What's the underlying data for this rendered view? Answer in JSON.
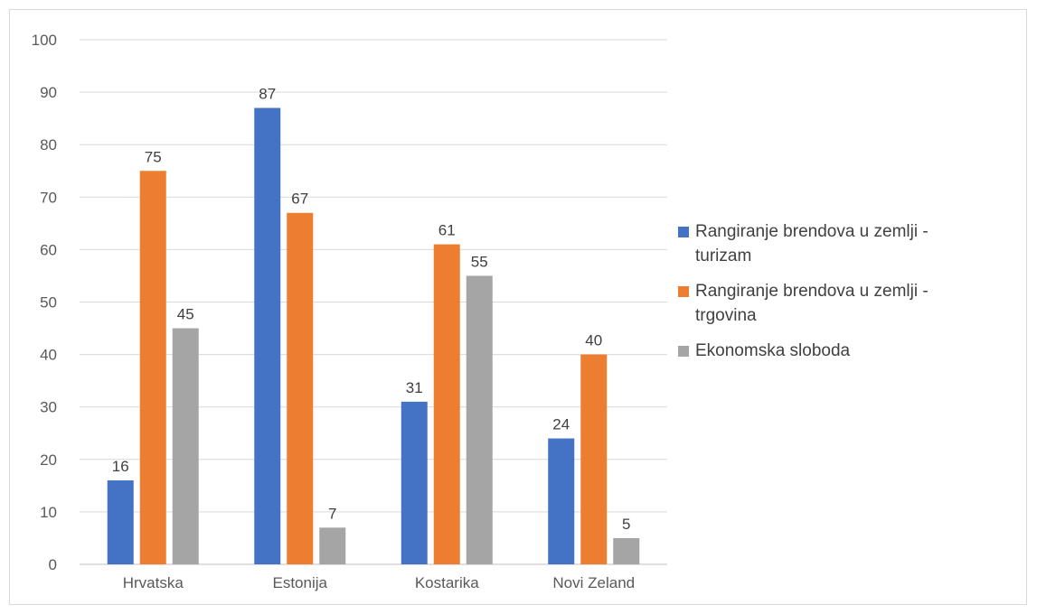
{
  "colors": {
    "series1": "#4472c4",
    "series2": "#ed7d31",
    "series3": "#a5a5a5",
    "grid": "#d9d9d9",
    "axis": "#bfbfbf"
  },
  "chart_data": {
    "type": "bar",
    "categories": [
      "Hrvatska",
      "Estonija",
      "Kostarika",
      "Novi Zeland"
    ],
    "series": [
      {
        "name": "Rangiranje brendova u zemlji - turizam",
        "values": [
          16,
          87,
          31,
          24
        ]
      },
      {
        "name": "Rangiranje brendova u zemlji - trgovina",
        "values": [
          75,
          67,
          61,
          40
        ]
      },
      {
        "name": "Ekonomska sloboda",
        "values": [
          45,
          7,
          55,
          5
        ]
      }
    ],
    "yticks": [
      "0",
      "10",
      "20",
      "30",
      "40",
      "50",
      "60",
      "70",
      "80",
      "90",
      "100"
    ],
    "ylim": [
      0,
      100
    ],
    "grid": true,
    "legend_position": "right",
    "title": "",
    "xlabel": "",
    "ylabel": ""
  }
}
